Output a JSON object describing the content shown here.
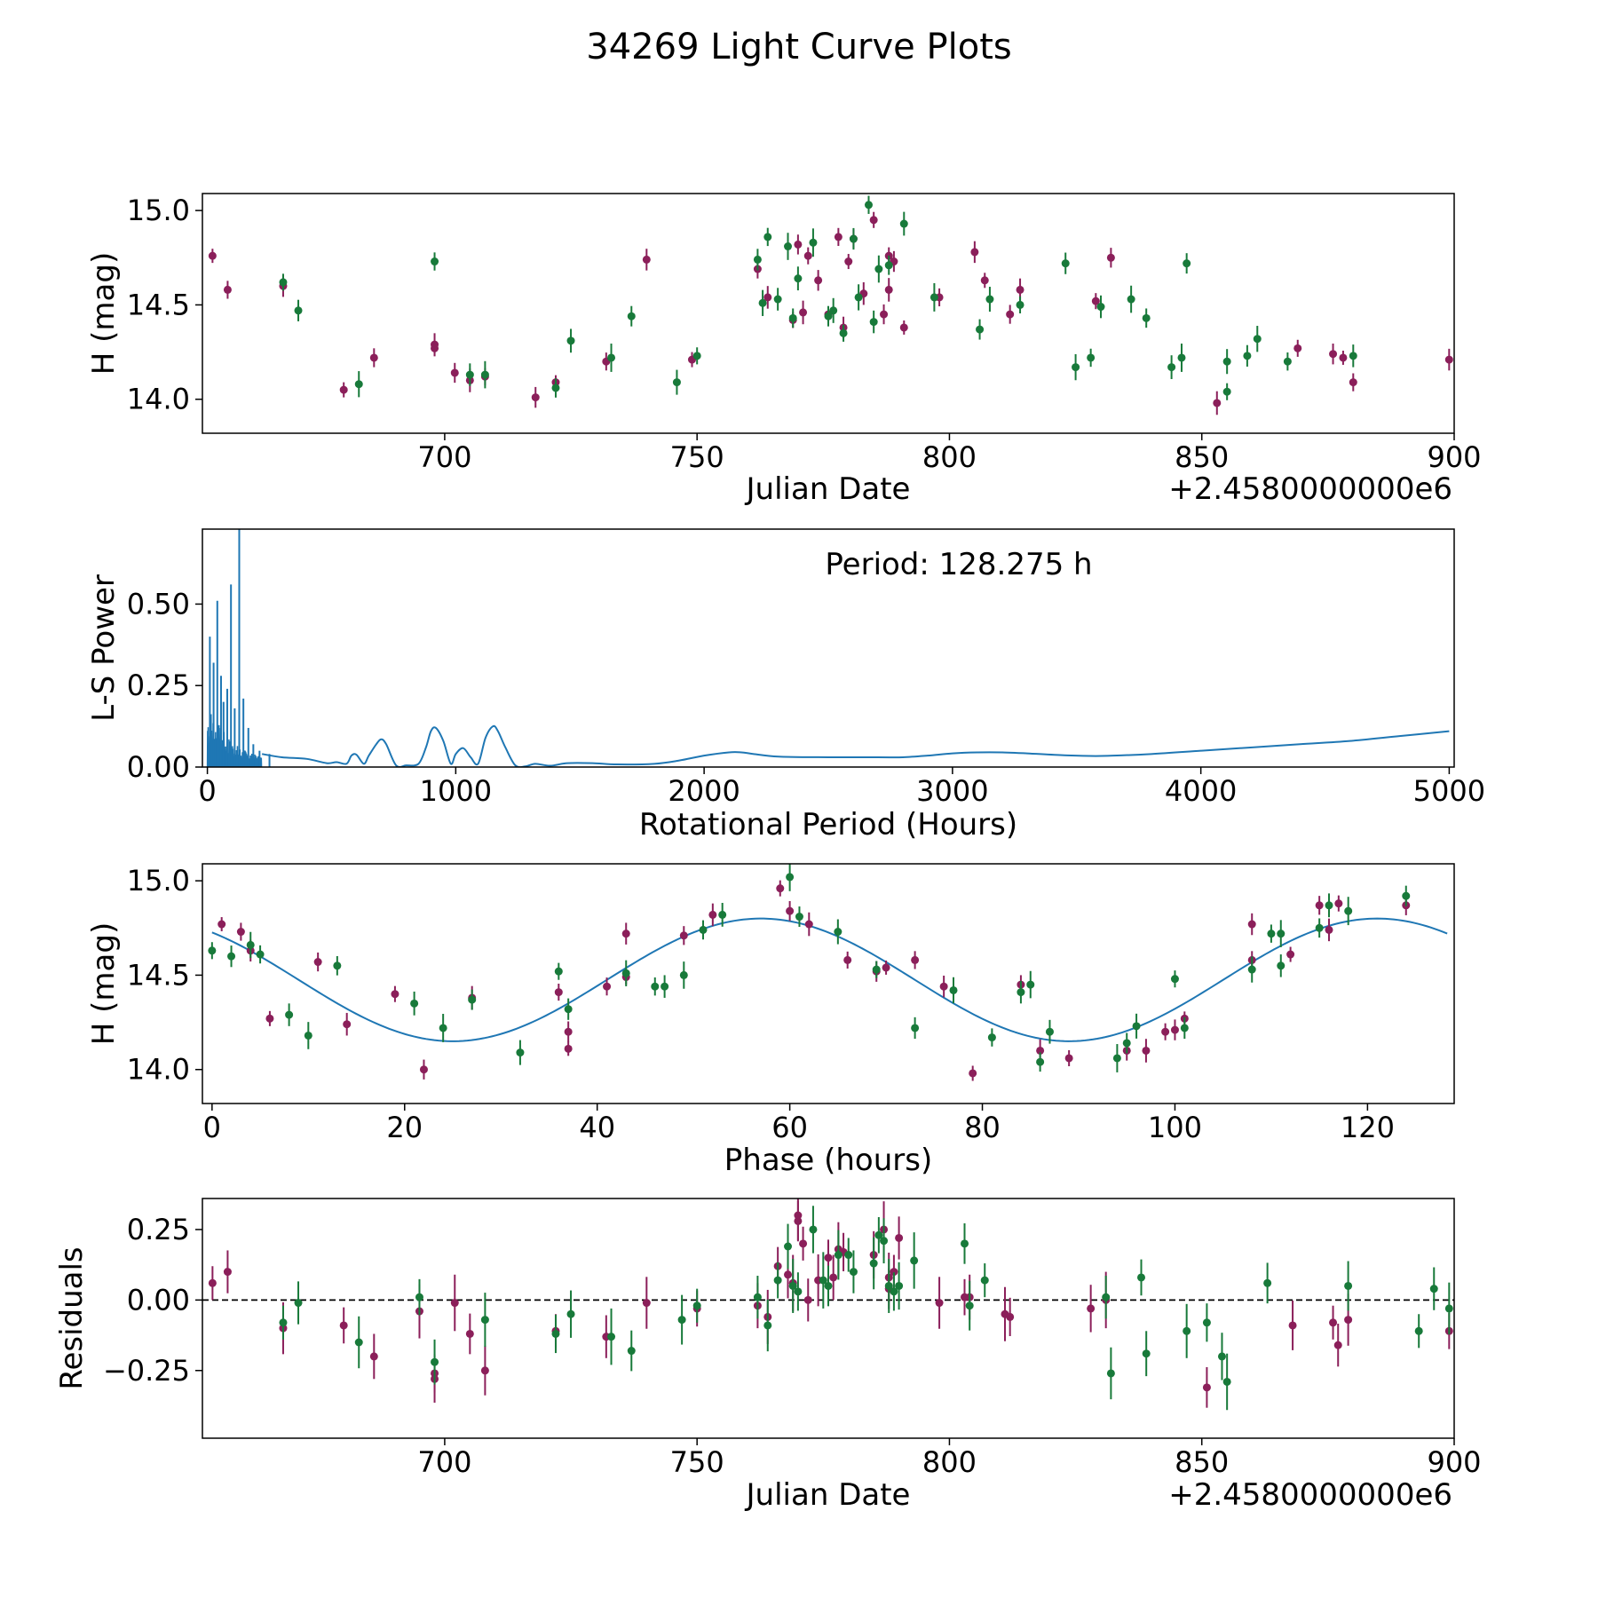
{
  "figure": {
    "title": "34269 Light Curve Plots"
  },
  "colors": {
    "band_r": "#8b1f5a",
    "band_g": "#187a3a",
    "curve": "#1f77b4",
    "axis": "#000000",
    "zero_line": "#000000"
  },
  "chart_data": [
    {
      "type": "scatter",
      "name": "light-curve",
      "xlabel": "Julian Date",
      "ylabel": "H (mag)",
      "offset_label": "+2.4580000000e6",
      "xlim": [
        652,
        900
      ],
      "ylim": [
        13.82,
        15.09
      ],
      "xticks": [
        700,
        750,
        800,
        850,
        900
      ],
      "yticks": [
        14.0,
        14.5,
        15.0
      ],
      "ytick_labels": [
        "14.0",
        "14.5",
        "15.0"
      ],
      "series": [
        {
          "name": "r",
          "color": "#8b1f5a",
          "err": 0.05,
          "x": [
            654,
            657,
            668,
            680,
            686,
            698,
            698,
            702,
            705,
            708,
            718,
            722,
            732,
            740,
            749,
            762,
            764,
            769,
            770,
            771,
            772,
            774,
            776,
            778,
            779,
            780,
            781,
            783,
            785,
            787,
            788,
            788,
            789,
            791,
            798,
            805,
            807,
            812,
            814,
            829,
            832,
            853,
            869,
            876,
            878,
            880,
            899
          ],
          "y": [
            14.76,
            14.58,
            14.6,
            14.05,
            14.22,
            14.29,
            14.27,
            14.14,
            14.1,
            14.12,
            14.01,
            14.09,
            14.2,
            14.74,
            14.21,
            14.69,
            14.54,
            14.42,
            14.82,
            14.46,
            14.76,
            14.63,
            14.45,
            14.86,
            14.38,
            14.73,
            14.85,
            14.56,
            14.95,
            14.45,
            14.58,
            14.76,
            14.73,
            14.38,
            14.54,
            14.78,
            14.63,
            14.45,
            14.58,
            14.52,
            14.75,
            13.98,
            14.27,
            14.24,
            14.22,
            14.09,
            14.21
          ]
        },
        {
          "name": "g",
          "color": "#187a3a",
          "err": 0.06,
          "x": [
            668,
            671,
            683,
            698,
            705,
            708,
            722,
            725,
            733,
            737,
            746,
            750,
            762,
            763,
            764,
            766,
            768,
            769,
            770,
            773,
            776,
            777,
            779,
            781,
            782,
            784,
            785,
            786,
            788,
            791,
            797,
            806,
            808,
            814,
            823,
            825,
            828,
            830,
            836,
            839,
            844,
            846,
            847,
            855,
            855,
            859,
            861,
            867,
            880
          ],
          "y": [
            14.62,
            14.47,
            14.08,
            14.73,
            14.13,
            14.13,
            14.06,
            14.31,
            14.22,
            14.44,
            14.09,
            14.23,
            14.74,
            14.51,
            14.86,
            14.53,
            14.81,
            14.43,
            14.64,
            14.83,
            14.44,
            14.47,
            14.35,
            14.85,
            14.54,
            15.03,
            14.41,
            14.69,
            14.71,
            14.93,
            14.54,
            14.37,
            14.53,
            14.5,
            14.72,
            14.17,
            14.22,
            14.49,
            14.53,
            14.43,
            14.17,
            14.22,
            14.72,
            14.2,
            14.04,
            14.23,
            14.32,
            14.2,
            14.23
          ]
        }
      ]
    },
    {
      "type": "line",
      "name": "periodogram",
      "xlabel": "Rotational Period (Hours)",
      "ylabel": "L-S Power",
      "annotation": "Period: 128.275 h",
      "xlim": [
        -20,
        5020
      ],
      "ylim": [
        0,
        0.73
      ],
      "xticks": [
        0,
        1000,
        2000,
        3000,
        4000,
        5000
      ],
      "yticks": [
        0.0,
        0.25,
        0.5
      ],
      "ytick_labels": [
        "0.00",
        "0.25",
        "0.50"
      ],
      "peaks": [
        {
          "period": 10,
          "power": 0.4
        },
        {
          "period": 25,
          "power": 0.32
        },
        {
          "period": 40,
          "power": 0.51
        },
        {
          "period": 55,
          "power": 0.28
        },
        {
          "period": 65,
          "power": 0.2
        },
        {
          "period": 80,
          "power": 0.24
        },
        {
          "period": 95,
          "power": 0.56
        },
        {
          "period": 110,
          "power": 0.18
        },
        {
          "period": 128.275,
          "power": 0.73
        },
        {
          "period": 145,
          "power": 0.21
        },
        {
          "period": 165,
          "power": 0.12
        },
        {
          "period": 185,
          "power": 0.07
        },
        {
          "period": 210,
          "power": 0.05
        },
        {
          "period": 250,
          "power": 0.04
        }
      ],
      "curve": {
        "period": [
          220,
          300,
          400,
          480,
          520,
          560,
          580,
          600,
          630,
          650,
          680,
          700,
          720,
          760,
          800,
          850,
          880,
          900,
          920,
          950,
          980,
          1000,
          1030,
          1060,
          1090,
          1120,
          1150,
          1170,
          1200,
          1240,
          1280,
          1320,
          1380,
          1450,
          1550,
          1650,
          1800,
          1900,
          2000,
          2100,
          2150,
          2200,
          2300,
          2500,
          2700,
          2800,
          2900,
          3000,
          3100,
          3200,
          3300,
          3450,
          3600,
          3800,
          4000,
          4200,
          4400,
          4600,
          4800,
          5000
        ],
        "power": [
          0.04,
          0.03,
          0.025,
          0.012,
          0.015,
          0.01,
          0.035,
          0.038,
          0.01,
          0.035,
          0.07,
          0.085,
          0.07,
          0.005,
          0.005,
          0.01,
          0.06,
          0.11,
          0.12,
          0.08,
          0.01,
          0.04,
          0.058,
          0.03,
          0.01,
          0.09,
          0.125,
          0.11,
          0.06,
          0.005,
          0.002,
          0.01,
          0.004,
          0.012,
          0.012,
          0.008,
          0.01,
          0.02,
          0.035,
          0.045,
          0.045,
          0.04,
          0.032,
          0.03,
          0.03,
          0.03,
          0.035,
          0.042,
          0.045,
          0.045,
          0.042,
          0.036,
          0.034,
          0.04,
          0.05,
          0.06,
          0.07,
          0.08,
          0.095,
          0.11
        ]
      }
    },
    {
      "type": "scatter",
      "name": "phased",
      "xlabel": "Phase (hours)",
      "ylabel": "H (mag)",
      "xlim": [
        -1,
        129
      ],
      "ylim": [
        13.82,
        15.09
      ],
      "xticks": [
        0,
        20,
        40,
        60,
        80,
        100,
        120
      ],
      "yticks": [
        14.0,
        14.5,
        15.0
      ],
      "ytick_labels": [
        "14.0",
        "14.5",
        "15.0"
      ],
      "model": {
        "mean": 14.475,
        "amplitude": 0.325,
        "peak_phase": 57,
        "period": 64,
        "x_start": 0,
        "x_end": 128.275
      },
      "series": [
        {
          "name": "r",
          "color": "#8b1f5a",
          "err": 0.05,
          "x": [
            1,
            3,
            4,
            6,
            11,
            14,
            19,
            22,
            27,
            36,
            37,
            37,
            41,
            43,
            43,
            49,
            52,
            59,
            60,
            62,
            66,
            69,
            70,
            73,
            76,
            79,
            84,
            86,
            89,
            95,
            97,
            99,
            100,
            101,
            108,
            108,
            112,
            115,
            116,
            117,
            124
          ],
          "y": [
            14.77,
            14.73,
            14.63,
            14.27,
            14.57,
            14.24,
            14.4,
            14.0,
            14.38,
            14.41,
            14.2,
            14.11,
            14.44,
            14.72,
            14.49,
            14.71,
            14.82,
            14.96,
            14.84,
            14.77,
            14.58,
            14.52,
            14.54,
            14.58,
            14.44,
            13.98,
            14.45,
            14.1,
            14.06,
            14.1,
            14.1,
            14.2,
            14.21,
            14.27,
            14.58,
            14.77,
            14.61,
            14.87,
            14.74,
            14.88,
            14.87
          ]
        },
        {
          "name": "g",
          "color": "#187a3a",
          "err": 0.06,
          "x": [
            0,
            2,
            4,
            5,
            8,
            10,
            13,
            21,
            24,
            27,
            32,
            36,
            37,
            43,
            46,
            47,
            49,
            51,
            53,
            60,
            61,
            65,
            69,
            73,
            77,
            81,
            84,
            85,
            86,
            87,
            94,
            95,
            96,
            100,
            101,
            108,
            110,
            111,
            111,
            115,
            116,
            118,
            124
          ],
          "y": [
            14.63,
            14.6,
            14.66,
            14.61,
            14.29,
            14.18,
            14.55,
            14.35,
            14.22,
            14.37,
            14.09,
            14.52,
            14.32,
            14.51,
            14.44,
            14.44,
            14.5,
            14.74,
            14.82,
            15.02,
            14.81,
            14.73,
            14.53,
            14.22,
            14.42,
            14.17,
            14.41,
            14.45,
            14.04,
            14.2,
            14.06,
            14.14,
            14.23,
            14.48,
            14.22,
            14.53,
            14.72,
            14.55,
            14.72,
            14.75,
            14.87,
            14.84,
            14.92
          ]
        }
      ]
    },
    {
      "type": "scatter",
      "name": "residuals",
      "xlabel": "Julian Date",
      "ylabel": "Residuals",
      "offset_label": "+2.4580000000e6",
      "xlim": [
        652,
        900
      ],
      "ylim": [
        -0.49,
        0.36
      ],
      "xticks": [
        700,
        750,
        800,
        850,
        900
      ],
      "yticks": [
        -0.25,
        0.0,
        0.25
      ],
      "ytick_labels": [
        "−0.25",
        "0.00",
        "0.25"
      ],
      "zero_line": true,
      "series": [
        {
          "name": "r",
          "color": "#8b1f5a",
          "err": 0.08,
          "x": [
            654,
            657,
            668,
            680,
            686,
            695,
            698,
            698,
            702,
            705,
            708,
            722,
            732,
            740,
            750,
            762,
            764,
            766,
            768,
            769,
            770,
            770,
            771,
            772,
            774,
            776,
            777,
            778,
            779,
            785,
            787,
            788,
            788,
            789,
            790,
            798,
            803,
            804,
            811,
            812,
            828,
            831,
            851,
            868,
            876,
            877,
            879,
            899
          ],
          "y": [
            0.06,
            0.1,
            -0.1,
            -0.09,
            -0.2,
            -0.04,
            -0.26,
            -0.28,
            -0.01,
            -0.12,
            -0.25,
            -0.11,
            -0.13,
            -0.01,
            -0.03,
            -0.02,
            -0.06,
            0.12,
            0.09,
            0.06,
            0.28,
            0.3,
            0.2,
            0.0,
            0.07,
            0.15,
            0.08,
            0.18,
            0.17,
            0.16,
            0.25,
            0.04,
            0.08,
            0.1,
            0.22,
            -0.01,
            0.01,
            0.01,
            -0.05,
            -0.06,
            -0.03,
            0.0,
            -0.31,
            -0.09,
            -0.08,
            -0.16,
            -0.07,
            -0.11
          ]
        },
        {
          "name": "g",
          "color": "#187a3a",
          "err": 0.08,
          "x": [
            668,
            671,
            683,
            695,
            698,
            708,
            722,
            725,
            733,
            737,
            747,
            750,
            762,
            764,
            766,
            768,
            769,
            770,
            773,
            775,
            776,
            778,
            780,
            781,
            785,
            786,
            787,
            788,
            789,
            790,
            793,
            803,
            804,
            807,
            831,
            832,
            838,
            839,
            847,
            851,
            854,
            855,
            863,
            879,
            893,
            896,
            899
          ],
          "y": [
            -0.08,
            -0.01,
            -0.15,
            0.01,
            -0.22,
            -0.07,
            -0.12,
            -0.05,
            -0.13,
            -0.18,
            -0.07,
            -0.02,
            0.01,
            -0.09,
            0.07,
            0.19,
            0.05,
            0.03,
            0.25,
            0.07,
            0.05,
            0.16,
            0.16,
            0.1,
            0.13,
            0.23,
            0.21,
            0.05,
            0.03,
            0.05,
            0.14,
            0.2,
            -0.02,
            0.07,
            0.01,
            -0.26,
            0.08,
            -0.19,
            -0.11,
            -0.08,
            -0.2,
            -0.29,
            0.06,
            0.05,
            -0.11,
            0.04,
            -0.03
          ]
        }
      ]
    }
  ]
}
